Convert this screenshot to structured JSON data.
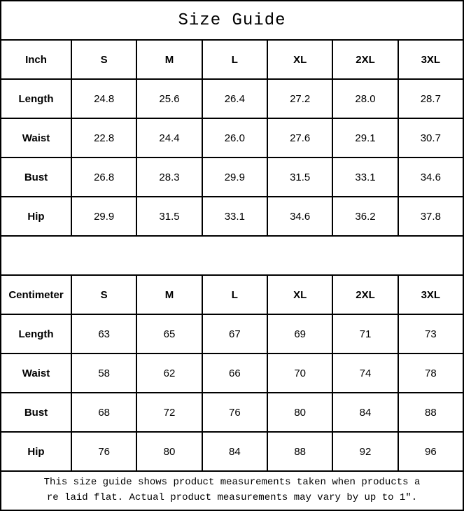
{
  "title": "Size Guide",
  "tables": {
    "inch": {
      "header": [
        "Inch",
        "S",
        "M",
        "L",
        "XL",
        "2XL",
        "3XL"
      ],
      "rows": [
        {
          "label": "Length",
          "values": [
            "24.8",
            "25.6",
            "26.4",
            "27.2",
            "28.0",
            "28.7"
          ]
        },
        {
          "label": "Waist",
          "values": [
            "22.8",
            "24.4",
            "26.0",
            "27.6",
            "29.1",
            "30.7"
          ]
        },
        {
          "label": "Bust",
          "values": [
            "26.8",
            "28.3",
            "29.9",
            "31.5",
            "33.1",
            "34.6"
          ]
        },
        {
          "label": "Hip",
          "values": [
            "29.9",
            "31.5",
            "33.1",
            "34.6",
            "36.2",
            "37.8"
          ]
        }
      ]
    },
    "centimeter": {
      "header": [
        "Centimeter",
        "S",
        "M",
        "L",
        "XL",
        "2XL",
        "3XL"
      ],
      "rows": [
        {
          "label": "Length",
          "values": [
            "63",
            "65",
            "67",
            "69",
            "71",
            "73"
          ]
        },
        {
          "label": "Waist",
          "values": [
            "58",
            "62",
            "66",
            "70",
            "74",
            "78"
          ]
        },
        {
          "label": "Bust",
          "values": [
            "68",
            "72",
            "76",
            "80",
            "84",
            "88"
          ]
        },
        {
          "label": "Hip",
          "values": [
            "76",
            "80",
            "84",
            "88",
            "92",
            "96"
          ]
        }
      ]
    }
  },
  "footer": {
    "line1": "This size guide shows product measurements taken when products a",
    "line2": "re laid flat. Actual product measurements may vary by up to 1″."
  },
  "colors": {
    "border": "#000000",
    "background": "#ffffff",
    "text": "#000000"
  }
}
